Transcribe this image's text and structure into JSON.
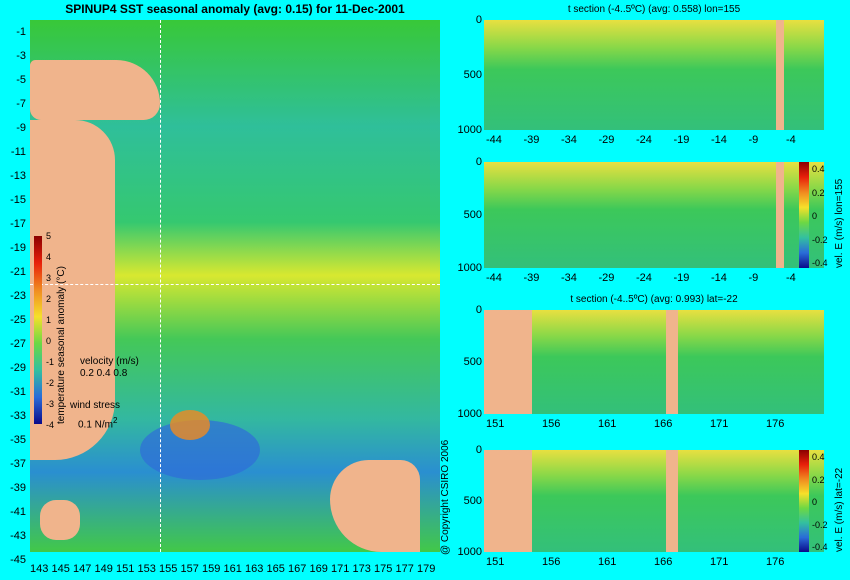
{
  "map": {
    "title": "SPINUP4 SST seasonal anomaly (avg: 0.15) for 11-Dec-2001",
    "y_ticks": [
      "-1",
      "-3",
      "-5",
      "-7",
      "-9",
      "-11",
      "-13",
      "-15",
      "-17",
      "-19",
      "-21",
      "-23",
      "-25",
      "-27",
      "-29",
      "-31",
      "-33",
      "-35",
      "-37",
      "-39",
      "-41",
      "-43",
      "-45"
    ],
    "x_ticks": [
      "143",
      "145",
      "147",
      "149",
      "151",
      "153",
      "155",
      "157",
      "159",
      "161",
      "163",
      "165",
      "167",
      "169",
      "171",
      "173",
      "175",
      "177",
      "179"
    ],
    "colorbar_ticks": [
      "5",
      "4",
      "3",
      "2",
      "1",
      "0",
      "-1",
      "-2",
      "-3",
      "-4"
    ],
    "colorbar_label": "temperature seasonal anomaly (°C)",
    "velocity_label": "velocity (m/s)",
    "velocity_values": "0.2 0.4 0.8",
    "wind_label": "wind stress",
    "wind_value": "0.1 N/m",
    "wind_exp": "2",
    "copyright": "@ Copyright CSIRO 2006"
  },
  "panels": [
    {
      "title": "t section (-4..5ºC) (avg: 0.558) lon=155",
      "y_ticks": [
        "0",
        "500",
        "1000"
      ],
      "x_ticks": [
        "-44",
        "-39",
        "-34",
        "-29",
        "-24",
        "-19",
        "-14",
        "-9",
        "-4"
      ]
    },
    {
      "title": "",
      "y_ticks": [
        "0",
        "500",
        "1000"
      ],
      "x_ticks": [
        "-44",
        "-39",
        "-34",
        "-29",
        "-24",
        "-19",
        "-14",
        "-9",
        "-4"
      ],
      "cb_ticks": [
        "0.4",
        "0.2",
        "0",
        "-0.2",
        "-0.4"
      ],
      "cb_label": "vel. E (m/s) lon=155"
    },
    {
      "title": "t section (-4..5ºC) (avg: 0.993) lat=-22",
      "y_ticks": [
        "0",
        "500",
        "1000"
      ],
      "x_ticks": [
        "151",
        "156",
        "161",
        "166",
        "171",
        "176"
      ]
    },
    {
      "title": "",
      "y_ticks": [
        "0",
        "500",
        "1000"
      ],
      "x_ticks": [
        "151",
        "156",
        "161",
        "166",
        "171",
        "176"
      ],
      "cb_ticks": [
        "0.4",
        "0.2",
        "0",
        "-0.2",
        "-0.4"
      ],
      "cb_label": "vel. E (m/s) lat=-22"
    }
  ],
  "colors": {
    "background": "#00ffff",
    "land": "#f0b48c"
  }
}
